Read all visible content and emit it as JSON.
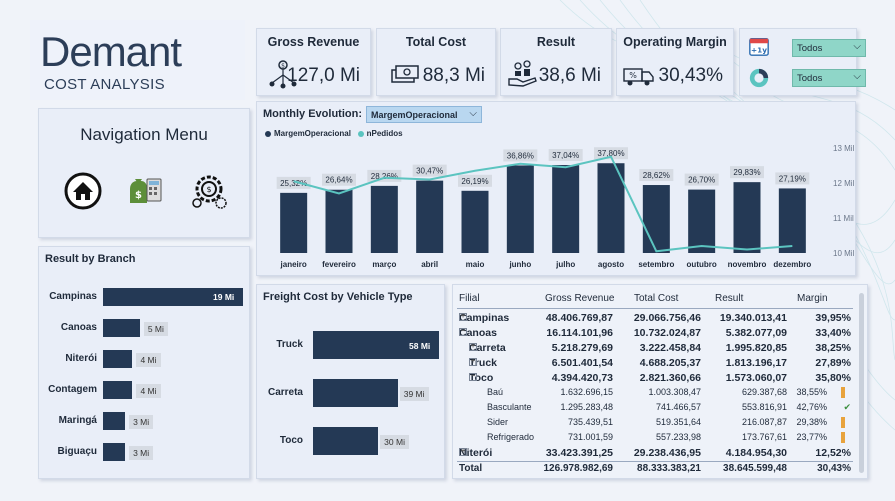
{
  "logo": {
    "brand": "Demant",
    "subtitle": "COST ANALYSIS"
  },
  "kpis": [
    {
      "title": "Gross Revenue",
      "value": "127,0 Mi",
      "icon": "network-money-icon"
    },
    {
      "title": "Total Cost",
      "value": "88,3 Mi",
      "icon": "cash-icon"
    },
    {
      "title": "Result",
      "value": "38,6 Mi",
      "icon": "hand-coins-icon"
    },
    {
      "title": "Operating Margin",
      "value": "30,43%",
      "icon": "truck-percent-icon"
    }
  ],
  "filters": {
    "year_icon_label": "+1y",
    "year_value": "Todos",
    "period_value": "Todos"
  },
  "nav": {
    "title": "Navigation Menu",
    "items": [
      "home-icon",
      "finance-icon",
      "settings-gear-icon"
    ]
  },
  "branch": {
    "title": "Result by Branch",
    "rows": [
      {
        "name": "Campinas",
        "label": "19 Mi",
        "value": 19
      },
      {
        "name": "Canoas",
        "label": "5 Mi",
        "value": 5
      },
      {
        "name": "Niterói",
        "label": "4 Mi",
        "value": 4
      },
      {
        "name": "Contagem",
        "label": "4 Mi",
        "value": 4
      },
      {
        "name": "Maringá",
        "label": "3 Mi",
        "value": 3
      },
      {
        "name": "Biguaçu",
        "label": "3 Mi",
        "value": 3
      }
    ]
  },
  "monthly": {
    "title": "Monthly Evolution:",
    "selector": "MargemOperacional",
    "legend": [
      "MargemOperacional",
      "nPedidos"
    ],
    "colors": {
      "bar": "#243955",
      "line": "#5bc4c0"
    }
  },
  "chart_data": {
    "type": "bar",
    "categories": [
      "janeiro",
      "fevereiro",
      "março",
      "abril",
      "maio",
      "junho",
      "julho",
      "agosto",
      "setembro",
      "outubro",
      "novembro",
      "dezembro"
    ],
    "series": [
      {
        "name": "MargemOperacional",
        "values": [
          25.32,
          26.64,
          28.26,
          30.47,
          26.19,
          36.86,
          37.04,
          37.8,
          28.62,
          26.7,
          29.83,
          27.19
        ],
        "labels": [
          "25,32%",
          "26,64%",
          "28,26%",
          "30,47%",
          "26,19%",
          "36,86%",
          "37,04%",
          "37,80%",
          "28,62%",
          "26,70%",
          "29,83%",
          "27,19%"
        ]
      },
      {
        "name": "nPedidos",
        "axis": "right",
        "values": [
          12.05,
          11.7,
          12.15,
          12.1,
          12.35,
          12.55,
          12.45,
          12.75,
          10.05,
          10.2,
          10.1,
          10.2
        ]
      }
    ],
    "y2_ticks": [
      "13 Mil",
      "12 Mil",
      "11 Mil",
      "10 Mil"
    ],
    "y2_lim": [
      10,
      13
    ]
  },
  "freight": {
    "title": "Freight Cost by Vehicle Type",
    "rows": [
      {
        "name": "Truck",
        "label": "58 Mi",
        "value": 58
      },
      {
        "name": "Carreta",
        "label": "39 Mi",
        "value": 39
      },
      {
        "name": "Toco",
        "label": "30 Mi",
        "value": 30
      }
    ]
  },
  "table": {
    "headers": [
      "Filial",
      "Gross Revenue",
      "Total Cost",
      "Result",
      "Margin"
    ],
    "rows": [
      {
        "name": "Campinas",
        "gr": "48.406.769,87",
        "tc": "29.066.756,46",
        "res": "19.340.013,41",
        "mg": "39,95%",
        "level": 0,
        "exp": "+"
      },
      {
        "name": "Canoas",
        "gr": "16.114.101,96",
        "tc": "10.732.024,87",
        "res": "5.382.077,09",
        "mg": "33,40%",
        "level": 0,
        "exp": "−"
      },
      {
        "name": "Carreta",
        "gr": "5.218.279,69",
        "tc": "3.222.458,84",
        "res": "1.995.820,85",
        "mg": "38,25%",
        "level": 1,
        "exp": "+"
      },
      {
        "name": "Truck",
        "gr": "6.501.401,54",
        "tc": "4.688.205,37",
        "res": "1.813.196,17",
        "mg": "27,89%",
        "level": 1,
        "exp": "+"
      },
      {
        "name": "Toco",
        "gr": "4.394.420,73",
        "tc": "2.821.360,66",
        "res": "1.573.060,07",
        "mg": "35,80%",
        "level": 1,
        "exp": "−"
      },
      {
        "name": "Baú",
        "gr": "1.632.696,15",
        "tc": "1.003.308,47",
        "res": "629.387,68",
        "mg": "38,55%",
        "level": 2,
        "ind": "bar"
      },
      {
        "name": "Basculante",
        "gr": "1.295.283,48",
        "tc": "741.466,57",
        "res": "553.816,91",
        "mg": "42,76%",
        "level": 2,
        "ind": "check"
      },
      {
        "name": "Sider",
        "gr": "735.439,51",
        "tc": "519.351,64",
        "res": "216.087,87",
        "mg": "29,38%",
        "level": 2,
        "ind": "bar"
      },
      {
        "name": "Refrigerado",
        "gr": "731.001,59",
        "tc": "557.233,98",
        "res": "173.767,61",
        "mg": "23,77%",
        "level": 2,
        "ind": "bar"
      },
      {
        "name": "Niterói",
        "gr": "33.423.391,25",
        "tc": "29.238.436,95",
        "res": "4.184.954,30",
        "mg": "12,52%",
        "level": 0,
        "exp": "+"
      }
    ],
    "total": {
      "name": "Total",
      "gr": "126.978.982,69",
      "tc": "88.333.383,21",
      "res": "38.645.599,48",
      "mg": "30,43%"
    }
  }
}
